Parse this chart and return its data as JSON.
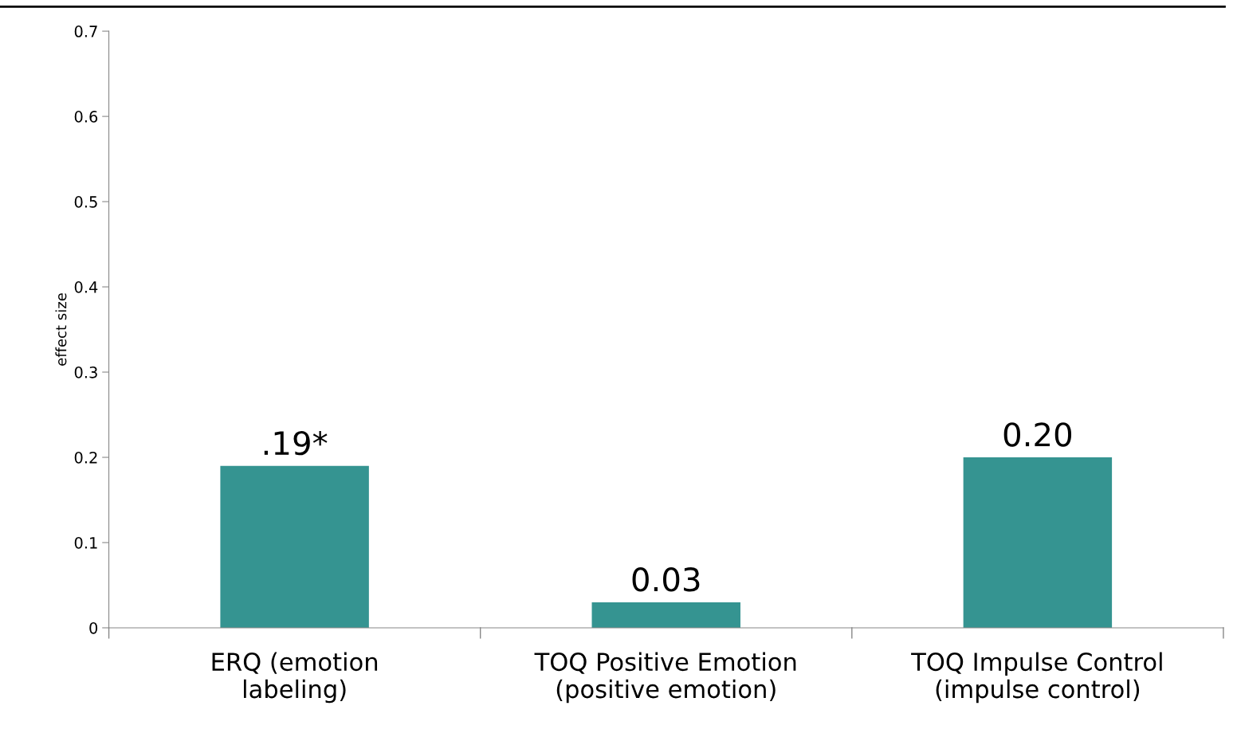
{
  "chart_data": {
    "type": "bar",
    "ylabel": "effect size",
    "categories": [
      "ERQ (emotion\nlabeling)",
      "TOQ Positive Emotion\n(positive emotion)",
      "TOQ Impulse Control\n(impulse control)"
    ],
    "values": [
      0.19,
      0.03,
      0.2
    ],
    "color": "#359491",
    "value_labels": [
      ".19*",
      "0.03",
      "0.20"
    ],
    "ylim": [
      0,
      0.7
    ],
    "yticks": [
      0,
      0.1,
      0.2,
      0.3,
      0.4,
      0.5,
      0.6,
      0.7
    ],
    "grid": false,
    "legend": false
  }
}
